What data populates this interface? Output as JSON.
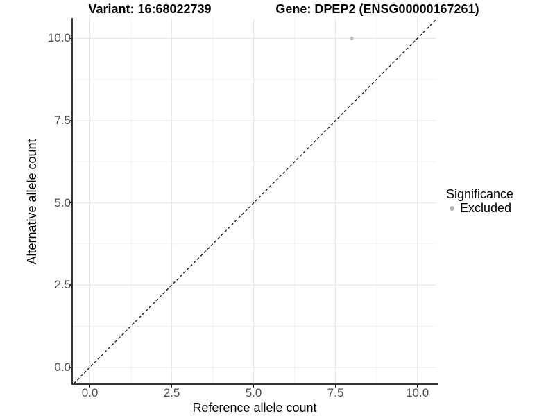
{
  "titles": {
    "variant": "Variant: 16:68022739",
    "gene": "Gene: DPEP2 (ENSG00000167261)"
  },
  "chart_data": {
    "type": "scatter",
    "title": "Variant: 16:68022739   Gene: DPEP2 (ENSG00000167261)",
    "xlabel": "Reference allele count",
    "ylabel": "Alternative allele count",
    "xlim": [
      -0.52,
      10.58
    ],
    "ylim": [
      -0.49,
      10.62
    ],
    "xticks": [
      0.0,
      2.5,
      5.0,
      7.5,
      10.0
    ],
    "yticks": [
      0.0,
      2.5,
      5.0,
      7.5,
      10.0
    ],
    "xtick_labels": [
      "0.0",
      "2.5",
      "5.0",
      "7.5",
      "10.0"
    ],
    "ytick_labels": [
      "0.0",
      "2.5",
      "5.0",
      "7.5",
      "10.0"
    ],
    "grid": "major+minor",
    "points": [
      {
        "x": 8,
        "y": 10,
        "significance": "Excluded",
        "color": "#bfbfbf",
        "radius": 2.6
      }
    ],
    "identity_line": {
      "slope": 1,
      "intercept": 0,
      "style": "dashed",
      "color": "#000000"
    },
    "legend_position": "right",
    "colors": {
      "background": "#ffffff",
      "grid_major": "#e4e4e4",
      "grid_minor": "#f1f1f1",
      "axis_line": "#333333",
      "tick_text": "#4d4d4d",
      "title_text": "#000000"
    }
  },
  "legend": {
    "title": "Significance",
    "items": [
      {
        "label": "Excluded",
        "color": "#b4b4b4"
      }
    ]
  }
}
